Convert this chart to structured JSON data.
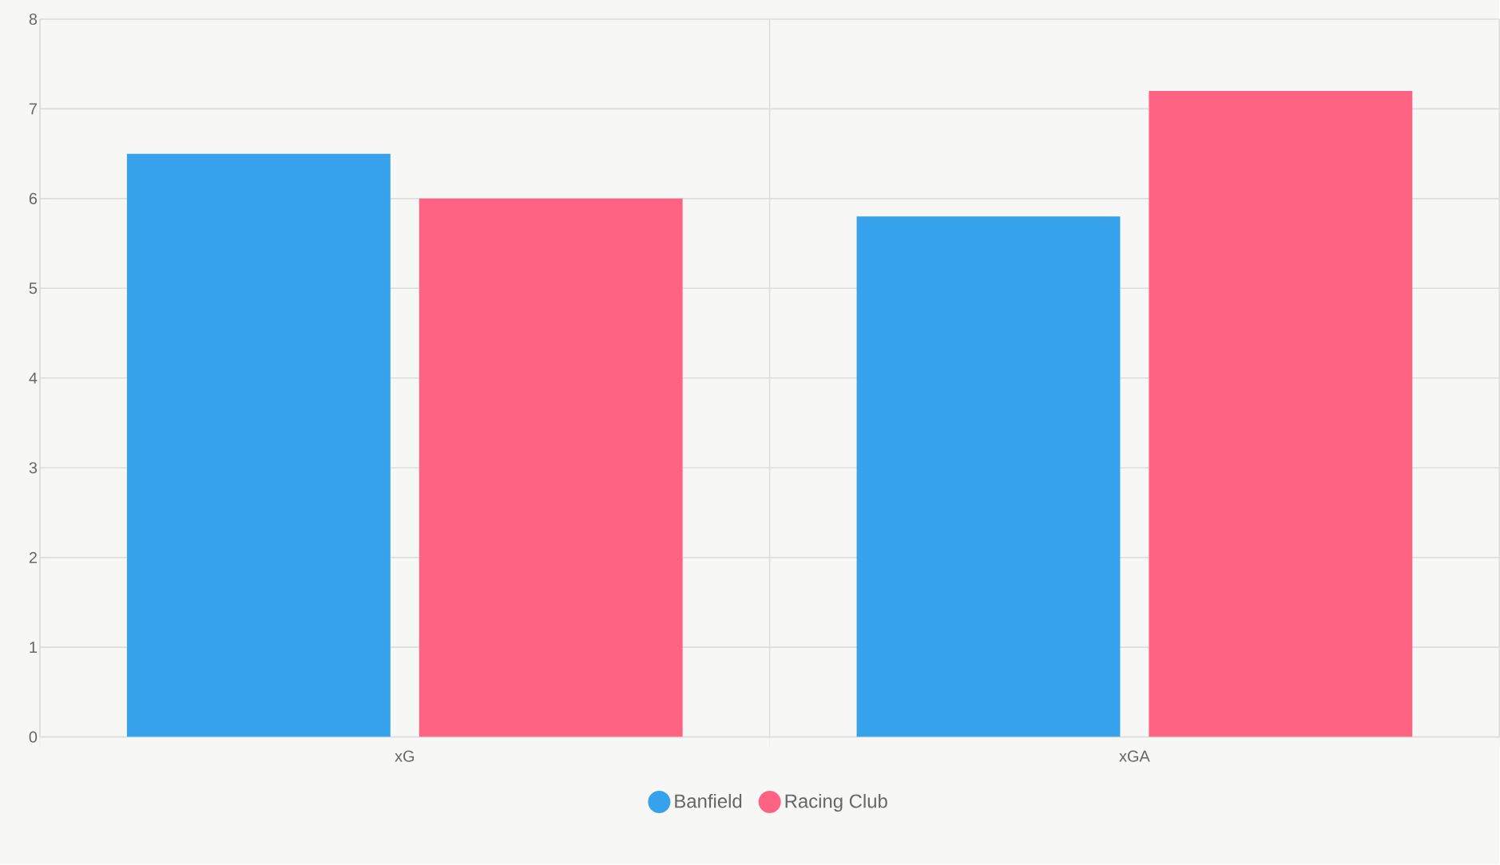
{
  "chart_data": {
    "type": "bar",
    "categories": [
      "xG",
      "xGA"
    ],
    "series": [
      {
        "name": "Banfield",
        "color": "#36a2eb",
        "values": [
          6.5,
          5.8
        ]
      },
      {
        "name": "Racing Club",
        "color": "#ff6384",
        "values": [
          6.0,
          7.2
        ]
      }
    ],
    "ylim": [
      0,
      8
    ],
    "yticks": [
      0,
      1,
      2,
      3,
      4,
      5,
      6,
      7,
      8
    ],
    "grid": true,
    "legend": "bottom",
    "marker": "circle"
  }
}
